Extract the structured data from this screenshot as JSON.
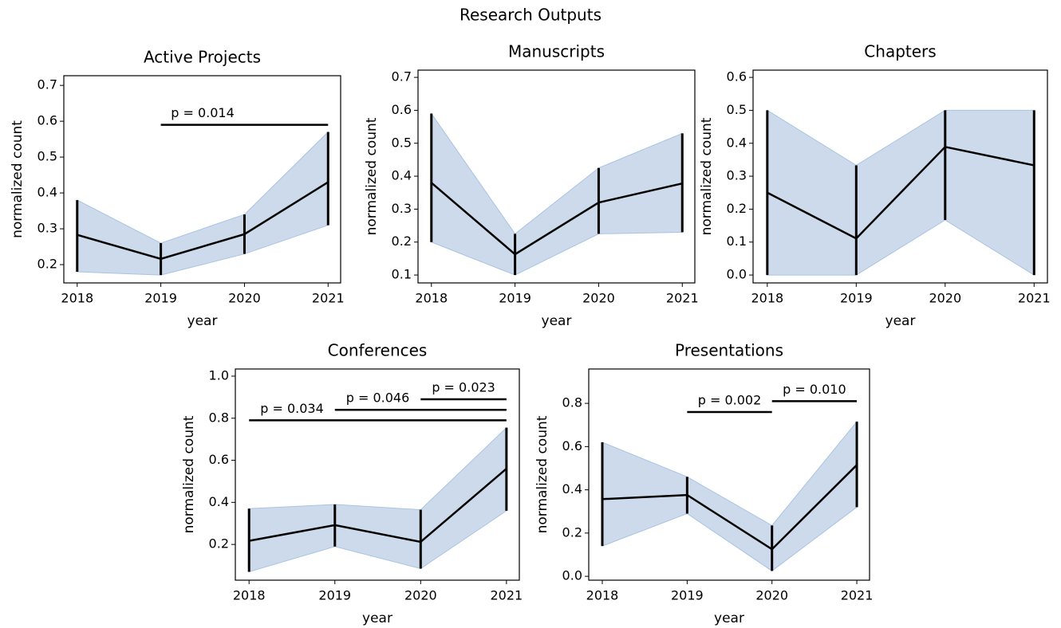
{
  "title": "Research Outputs",
  "chart_data": [
    {
      "type": "line",
      "title": "Active Projects",
      "xlabel": "year",
      "ylabel": "normalized count",
      "x": [
        2018,
        2019,
        2020,
        2021
      ],
      "values": [
        0.283,
        0.216,
        0.285,
        0.43
      ],
      "lower": [
        0.18,
        0.171,
        0.23,
        0.31
      ],
      "upper": [
        0.38,
        0.26,
        0.34,
        0.57
      ],
      "color": "#000000",
      "band_color": "#c6d6e9",
      "xlim": [
        2017.84,
        2021.15
      ],
      "xticks": [
        2018,
        2019,
        2020,
        2021
      ],
      "ylim": [
        0.149,
        0.727
      ],
      "yticks": [
        0.2,
        0.3,
        0.4,
        0.5,
        0.6,
        0.7
      ],
      "annotations": [
        {
          "label": "p = 0.014",
          "x1": 2019,
          "x2": 2021,
          "y": 0.59
        }
      ]
    },
    {
      "type": "line",
      "title": "Manuscripts",
      "xlabel": "year",
      "ylabel": "normalized count",
      "x": [
        2018,
        2019,
        2020,
        2021
      ],
      "values": [
        0.38,
        0.163,
        0.32,
        0.378
      ],
      "lower": [
        0.2,
        0.1,
        0.225,
        0.23
      ],
      "upper": [
        0.59,
        0.225,
        0.425,
        0.53
      ],
      "color": "#000000",
      "band_color": "#c6d6e9",
      "xlim": [
        2017.84,
        2021.15
      ],
      "xticks": [
        2018,
        2019,
        2020,
        2021
      ],
      "ylim": [
        0.076,
        0.722
      ],
      "yticks": [
        0.1,
        0.2,
        0.3,
        0.4,
        0.5,
        0.6,
        0.7
      ],
      "annotations": []
    },
    {
      "type": "line",
      "title": "Chapters",
      "xlabel": "year",
      "ylabel": "normalized count",
      "x": [
        2018,
        2019,
        2020,
        2021
      ],
      "values": [
        0.25,
        0.111,
        0.389,
        0.333
      ],
      "lower": [
        0.0,
        0.0,
        0.167,
        0.0
      ],
      "upper": [
        0.5,
        0.333,
        0.5,
        0.5
      ],
      "color": "#000000",
      "band_color": "#c6d6e9",
      "xlim": [
        2017.84,
        2021.15
      ],
      "xticks": [
        2018,
        2019,
        2020,
        2021
      ],
      "ylim": [
        -0.024,
        0.622
      ],
      "yticks": [
        0.0,
        0.1,
        0.2,
        0.3,
        0.4,
        0.5,
        0.6
      ],
      "annotations": []
    },
    {
      "type": "line",
      "title": "Conferences",
      "xlabel": "year",
      "ylabel": "normalized count",
      "x": [
        2018,
        2019,
        2020,
        2021
      ],
      "values": [
        0.217,
        0.292,
        0.212,
        0.56
      ],
      "lower": [
        0.07,
        0.19,
        0.085,
        0.36
      ],
      "upper": [
        0.37,
        0.39,
        0.365,
        0.755
      ],
      "color": "#000000",
      "band_color": "#c6d6e9",
      "xlim": [
        2017.84,
        2021.15
      ],
      "xticks": [
        2018,
        2019,
        2020,
        2021
      ],
      "ylim": [
        0.03,
        1.034
      ],
      "yticks": [
        0.2,
        0.4,
        0.6,
        0.8,
        1.0
      ],
      "annotations": [
        {
          "label": "p = 0.034",
          "x1": 2018,
          "x2": 2021,
          "y": 0.79
        },
        {
          "label": "p = 0.046",
          "x1": 2019,
          "x2": 2021,
          "y": 0.84
        },
        {
          "label": "p = 0.023",
          "x1": 2020,
          "x2": 2021,
          "y": 0.89
        }
      ]
    },
    {
      "type": "line",
      "title": "Presentations",
      "xlabel": "year",
      "ylabel": "normalized count",
      "x": [
        2018,
        2019,
        2020,
        2021
      ],
      "values": [
        0.357,
        0.376,
        0.125,
        0.515
      ],
      "lower": [
        0.14,
        0.29,
        0.025,
        0.32
      ],
      "upper": [
        0.62,
        0.46,
        0.235,
        0.715
      ],
      "color": "#000000",
      "band_color": "#c6d6e9",
      "xlim": [
        2017.84,
        2021.15
      ],
      "xticks": [
        2018,
        2019,
        2020,
        2021
      ],
      "ylim": [
        -0.018,
        0.959
      ],
      "yticks": [
        0.0,
        0.2,
        0.4,
        0.6,
        0.8
      ],
      "annotations": [
        {
          "label": "p = 0.002",
          "x1": 2019,
          "x2": 2020,
          "y": 0.76
        },
        {
          "label": "p = 0.010",
          "x1": 2020,
          "x2": 2021,
          "y": 0.81
        }
      ]
    }
  ]
}
